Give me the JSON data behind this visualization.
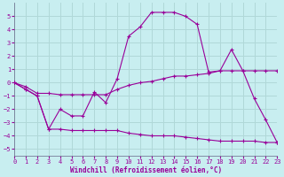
{
  "bg_color": "#c8eef0",
  "grid_color": "#b0d8d8",
  "line_color": "#990099",
  "x": [
    0,
    1,
    2,
    3,
    4,
    5,
    6,
    7,
    8,
    9,
    10,
    11,
    12,
    13,
    14,
    15,
    16,
    17,
    18,
    19,
    20,
    21,
    22,
    23
  ],
  "y_main": [
    0,
    -0.5,
    -1.0,
    -3.5,
    -2.0,
    -2.5,
    -2.5,
    -0.7,
    -1.5,
    0.3,
    3.5,
    4.2,
    5.3,
    5.3,
    5.3,
    5.0,
    4.4,
    0.8,
    0.9,
    2.5,
    0.9,
    -1.2,
    -2.8,
    -4.5
  ],
  "y_upper": [
    0,
    -0.3,
    -0.8,
    -0.8,
    -0.9,
    -0.9,
    -0.9,
    -0.9,
    -0.9,
    -0.5,
    -0.2,
    0.0,
    0.1,
    0.3,
    0.5,
    0.5,
    0.6,
    0.7,
    0.9,
    0.9,
    0.9,
    0.9,
    0.9,
    0.9
  ],
  "y_lower": [
    0,
    -0.5,
    -1.0,
    -3.5,
    -3.5,
    -3.6,
    -3.6,
    -3.6,
    -3.6,
    -3.6,
    -3.8,
    -3.9,
    -4.0,
    -4.0,
    -4.0,
    -4.1,
    -4.2,
    -4.3,
    -4.4,
    -4.4,
    -4.4,
    -4.4,
    -4.5,
    -4.5
  ],
  "ylim": [
    -5.5,
    6.0
  ],
  "yticks": [
    -5,
    -4,
    -3,
    -2,
    -1,
    0,
    1,
    2,
    3,
    4,
    5
  ],
  "xticks": [
    0,
    1,
    2,
    3,
    4,
    5,
    6,
    7,
    8,
    9,
    10,
    11,
    12,
    13,
    14,
    15,
    16,
    17,
    18,
    19,
    20,
    21,
    22,
    23
  ],
  "xlim": [
    0,
    23
  ],
  "xlabel": "Windchill (Refroidissement éolien,°C)"
}
